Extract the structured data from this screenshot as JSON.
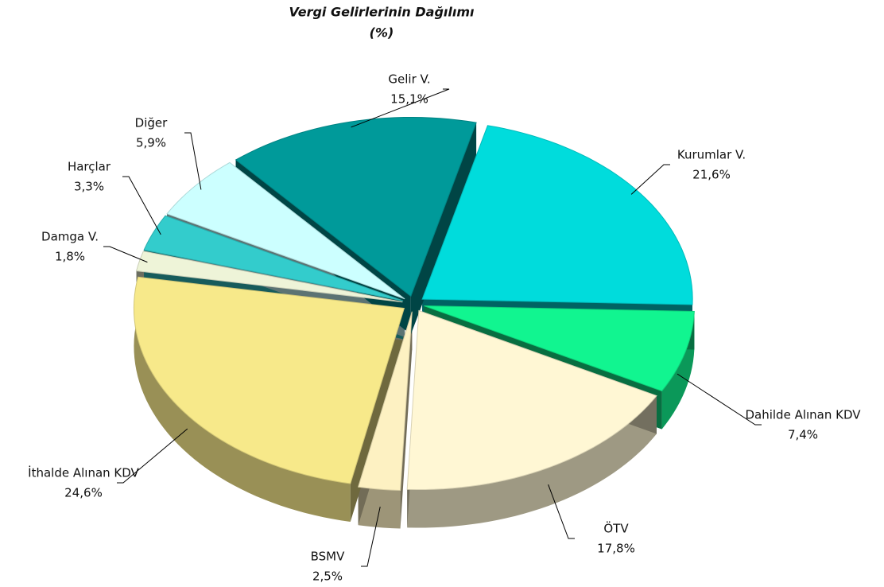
{
  "chart_data": {
    "type": "pie",
    "title": "Vergi Gelirlerinin Dağılımı",
    "subtitle": "(%)",
    "categories": [
      "Kurumlar V.",
      "Dahilde Alınan KDV",
      "ÖTV",
      "BSMV",
      "İthalde Alınan KDV",
      "Damga V.",
      "Harçlar",
      "Diğer",
      "Gelir V."
    ],
    "values": [
      21.6,
      7.4,
      17.8,
      2.5,
      24.6,
      1.8,
      3.3,
      5.9,
      15.1
    ],
    "value_labels": [
      "21,6%",
      "7,4%",
      "17,8%",
      "2,5%",
      "24,6%",
      "1,8%",
      "3,3%",
      "5,9%",
      "15,1%"
    ],
    "colors": [
      "#00dcdc",
      "#11f590",
      "#fff7d4",
      "#fdf1c2",
      "#f7e98a",
      "#eef4d8",
      "#33cccc",
      "#ccffff",
      "#009a9a"
    ]
  }
}
